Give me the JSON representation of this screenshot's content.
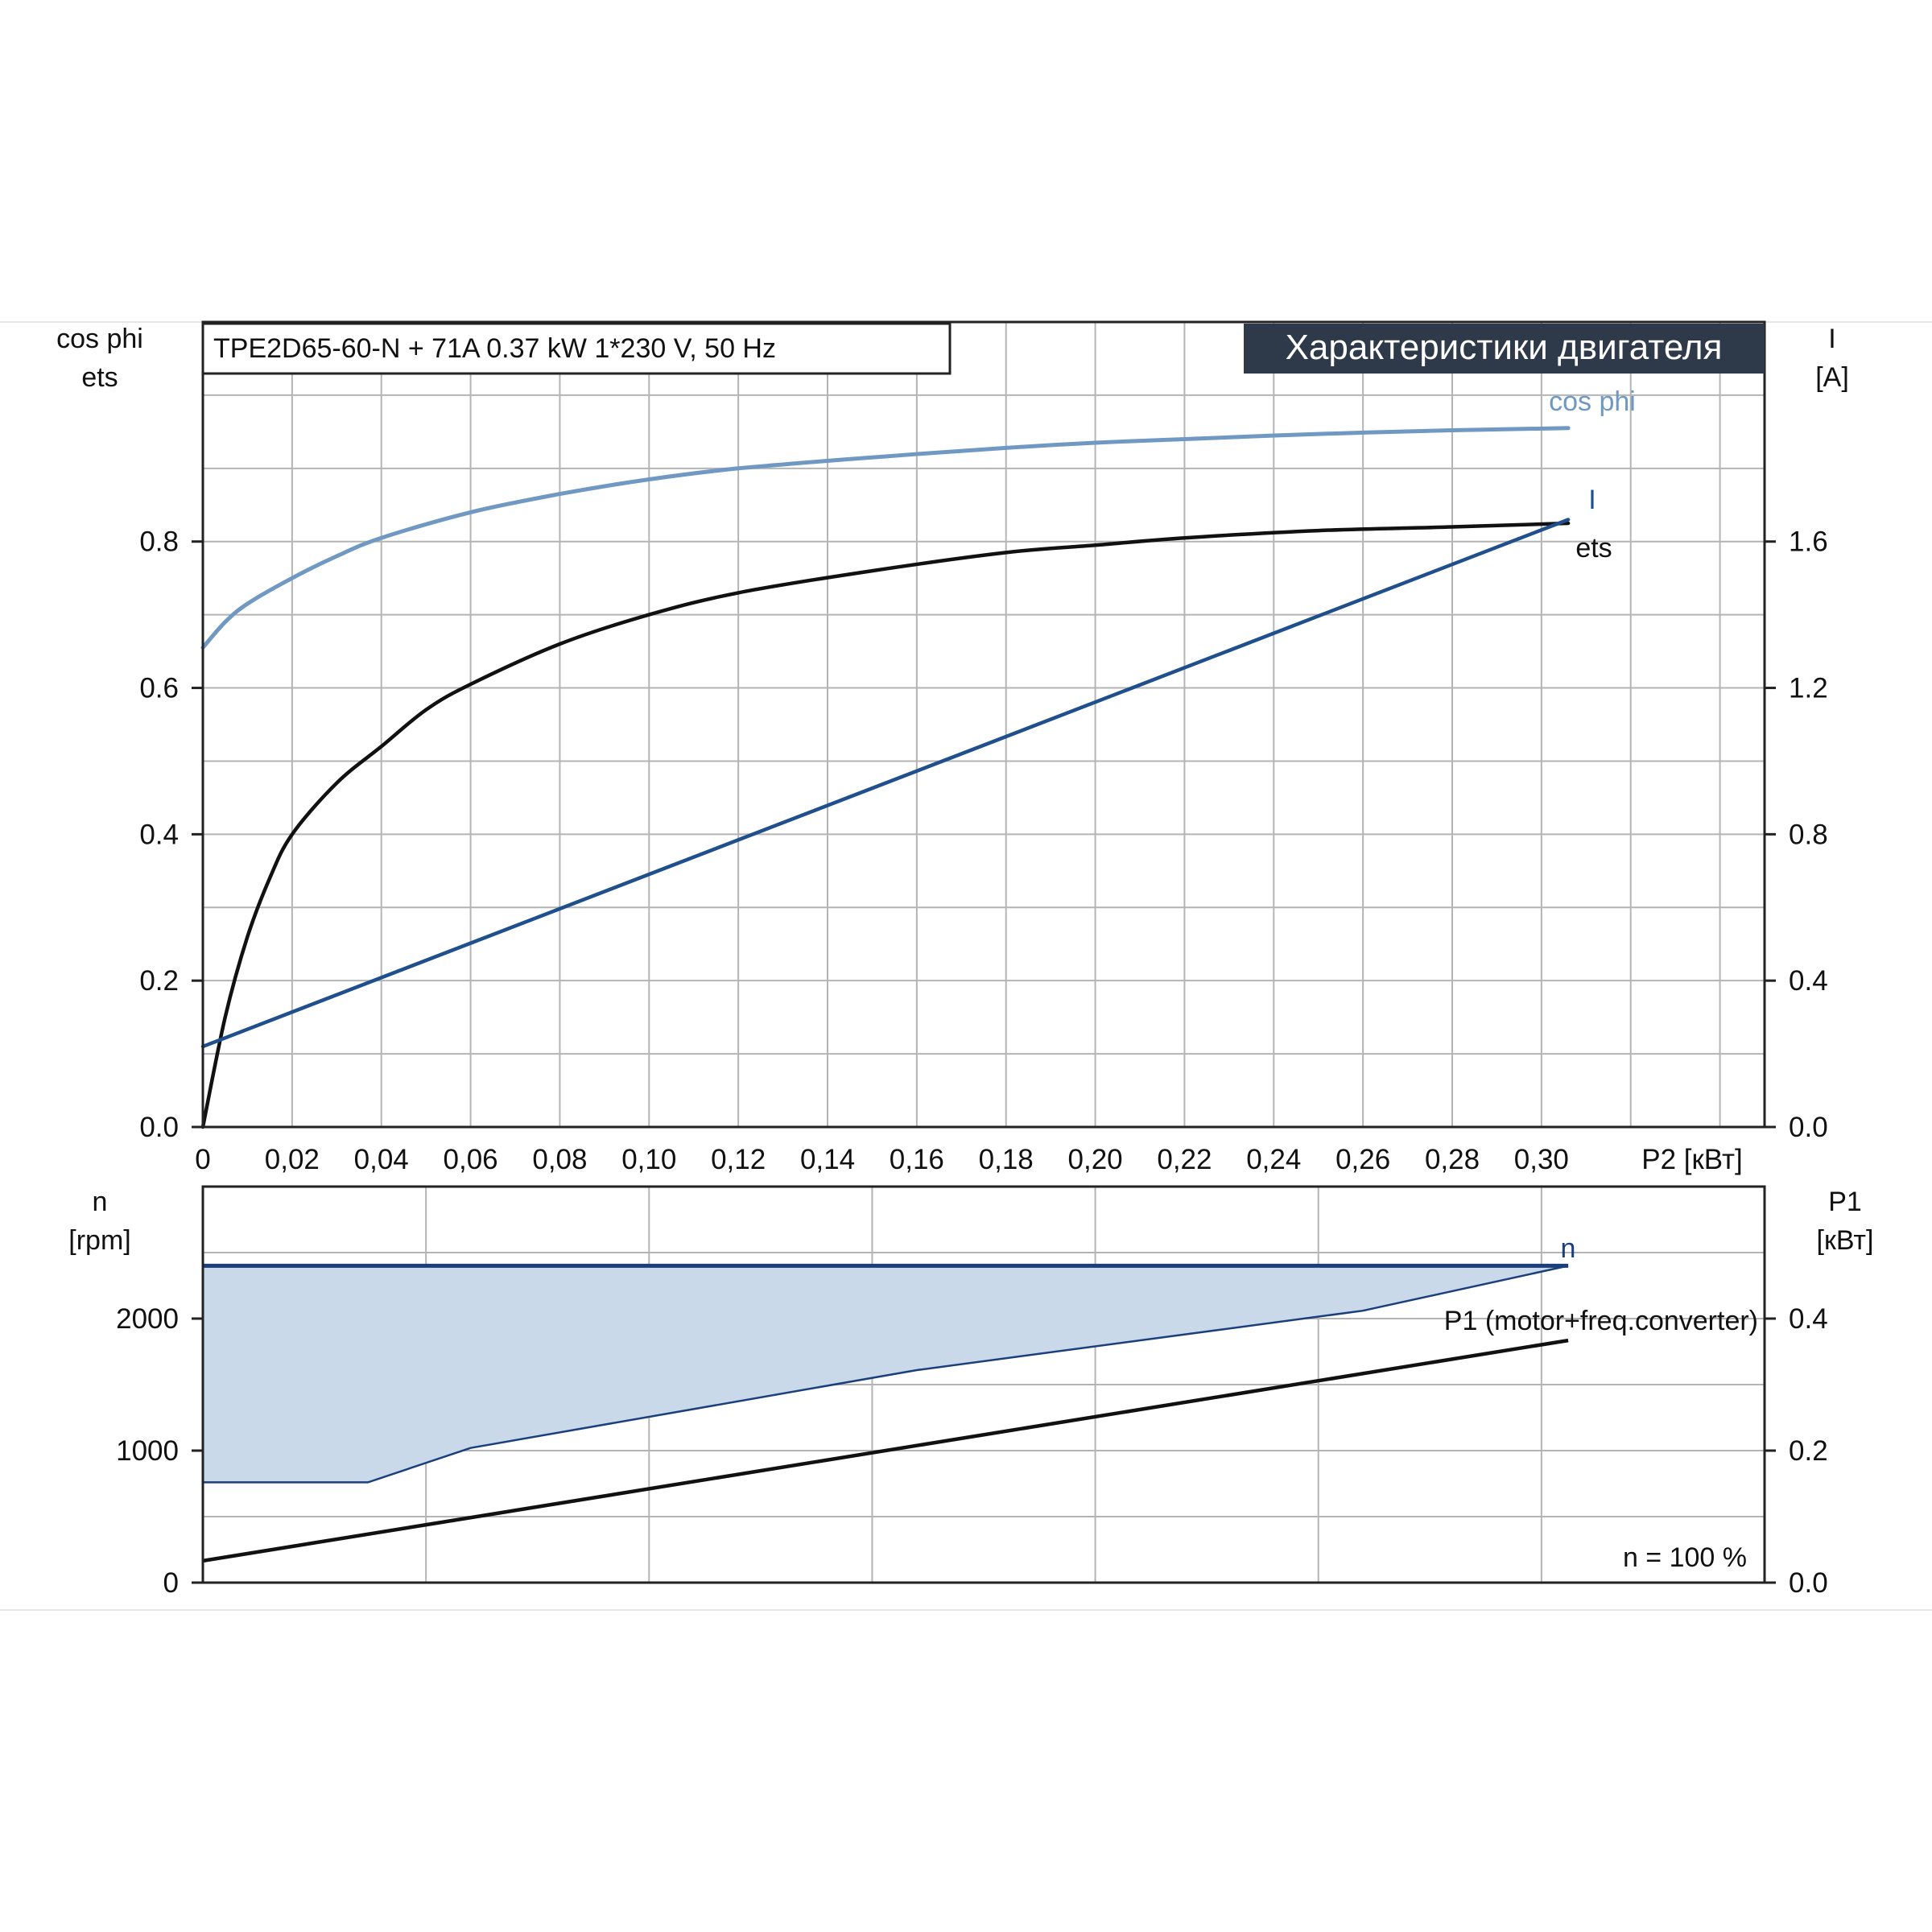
{
  "header": {
    "model": "TPE2D65-60-N + 71A   0.37 kW   1*230 V, 50 Hz",
    "title": "Характеристики двигателя"
  },
  "colors": {
    "cos_phi": "#6f98c2",
    "current": "#1f4f8c",
    "efficiency": "#111111",
    "speed": "#1b3f7a",
    "speed_band": "#c9d9ea",
    "power_input": "#111111",
    "title_bg": "#2e3a4a"
  },
  "chart_data": [
    {
      "type": "line",
      "xlabel": "P2 [кВт]",
      "ylabel_left": [
        "cos phi",
        "ets"
      ],
      "ylabel_right": [
        "I",
        "[A]"
      ],
      "xlim": [
        0,
        0.35
      ],
      "ylim_left": [
        0,
        1.1
      ],
      "ylim_right": [
        0,
        2.2
      ],
      "x_ticks": [
        "0",
        "0,02",
        "0,04",
        "0,06",
        "0,08",
        "0,10",
        "0,12",
        "0,14",
        "0,16",
        "0,18",
        "0,20",
        "0,22",
        "0,24",
        "0,26",
        "0,28",
        "0,30"
      ],
      "y_ticks_left": [
        "0.0",
        "0.2",
        "0.4",
        "0.6",
        "0.8"
      ],
      "y_ticks_right": [
        "0.0",
        "0.4",
        "0.8",
        "1.2",
        "1.6"
      ],
      "grid": true,
      "series": [
        {
          "name": "cos phi",
          "axis": "left",
          "color": "#6f98c2",
          "x": [
            0,
            0.005,
            0.01,
            0.02,
            0.03,
            0.04,
            0.06,
            0.08,
            0.1,
            0.12,
            0.15,
            0.18,
            0.2,
            0.22,
            0.25,
            0.28,
            0.306
          ],
          "y": [
            0.655,
            0.69,
            0.715,
            0.75,
            0.78,
            0.805,
            0.84,
            0.865,
            0.885,
            0.9,
            0.915,
            0.928,
            0.935,
            0.94,
            0.947,
            0.952,
            0.955
          ]
        },
        {
          "name": "ets",
          "axis": "left",
          "color": "#111111",
          "x": [
            0,
            0.005,
            0.01,
            0.015,
            0.02,
            0.03,
            0.04,
            0.05,
            0.06,
            0.08,
            0.1,
            0.12,
            0.15,
            0.18,
            0.2,
            0.22,
            0.25,
            0.28,
            0.306
          ],
          "y": [
            0.0,
            0.15,
            0.26,
            0.34,
            0.4,
            0.47,
            0.52,
            0.57,
            0.605,
            0.66,
            0.7,
            0.73,
            0.76,
            0.785,
            0.795,
            0.805,
            0.815,
            0.82,
            0.825
          ]
        },
        {
          "name": "I",
          "axis": "right",
          "color": "#1f4f8c",
          "x": [
            0,
            0.306
          ],
          "y": [
            0.22,
            1.66
          ]
        }
      ]
    },
    {
      "type": "area",
      "xlabel": "",
      "ylabel_left": [
        "n",
        "[rpm]"
      ],
      "ylabel_right": [
        "P1",
        "[кВт]"
      ],
      "xlim": [
        0,
        0.35
      ],
      "ylim_left": [
        0,
        3000
      ],
      "ylim_right": [
        0,
        0.6
      ],
      "y_ticks_left": [
        "0",
        "1000",
        "2000"
      ],
      "y_ticks_right": [
        "0.0",
        "0.2",
        "0.4"
      ],
      "grid": true,
      "annotation": "n = 100 %",
      "series": [
        {
          "name": "n",
          "axis": "left",
          "color": "#1b3f7a",
          "x": [
            0,
            0.306
          ],
          "y": [
            2400,
            2400
          ]
        },
        {
          "name": "",
          "axis": "left",
          "color": "#1b3f7a",
          "x": [
            0,
            0.037,
            0.06,
            0.16,
            0.26,
            0.306
          ],
          "y": [
            760,
            760,
            1020,
            1610,
            2060,
            2400
          ]
        },
        {
          "name": "P1 (motor+freq.converter)",
          "axis": "right",
          "color": "#111111",
          "x": [
            0,
            0.306
          ],
          "y": [
            0.033,
            0.367
          ]
        }
      ]
    }
  ]
}
